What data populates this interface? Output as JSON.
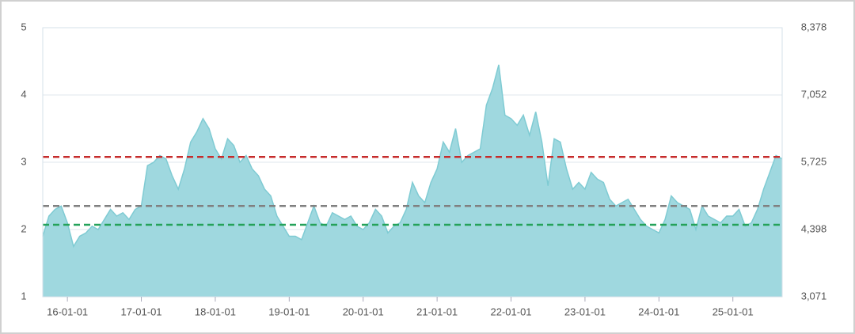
{
  "chart_data": {
    "type": "area",
    "color": "#9fd8df",
    "line_color": "#7fcbd3",
    "categories": [
      null,
      null,
      null,
      null,
      "16-01-01",
      null,
      null,
      null,
      null,
      null,
      null,
      null,
      null,
      null,
      null,
      null,
      "17-01-01",
      null,
      null,
      null,
      null,
      null,
      null,
      null,
      null,
      null,
      null,
      null,
      "18-01-01",
      null,
      null,
      null,
      null,
      null,
      null,
      null,
      null,
      null,
      null,
      null,
      "19-01-01",
      null,
      null,
      null,
      null,
      null,
      null,
      null,
      null,
      null,
      null,
      null,
      "20-01-01",
      null,
      null,
      null,
      null,
      null,
      null,
      null,
      null,
      null,
      null,
      null,
      "21-01-01",
      null,
      null,
      null,
      null,
      null,
      null,
      null,
      null,
      null,
      null,
      null,
      "22-01-01",
      null,
      null,
      null,
      null,
      null,
      null,
      null,
      null,
      null,
      null,
      null,
      "23-01-01",
      null,
      null,
      null,
      null,
      null,
      null,
      null,
      null,
      null,
      null,
      null,
      "24-01-01",
      null,
      null,
      null,
      null,
      null,
      null,
      null,
      null,
      null,
      null,
      null,
      "25-01-01",
      null,
      null,
      null,
      null,
      null,
      null,
      null,
      null
    ],
    "values": [
      1.9,
      2.2,
      2.3,
      2.35,
      2.1,
      1.75,
      1.9,
      1.95,
      2.05,
      2.0,
      2.15,
      2.3,
      2.2,
      2.25,
      2.15,
      2.3,
      2.35,
      2.95,
      3.0,
      3.1,
      3.05,
      2.8,
      2.6,
      2.9,
      3.3,
      3.45,
      3.65,
      3.5,
      3.2,
      3.05,
      3.35,
      3.25,
      3.0,
      3.1,
      2.9,
      2.8,
      2.6,
      2.5,
      2.2,
      2.05,
      1.9,
      1.9,
      1.85,
      2.1,
      2.35,
      2.1,
      2.05,
      2.25,
      2.2,
      2.15,
      2.2,
      2.05,
      2.0,
      2.1,
      2.3,
      2.2,
      1.95,
      2.05,
      2.1,
      2.3,
      2.7,
      2.5,
      2.4,
      2.7,
      2.9,
      3.3,
      3.15,
      3.5,
      3.0,
      3.1,
      3.15,
      3.2,
      3.85,
      4.1,
      4.45,
      3.7,
      3.65,
      3.55,
      3.7,
      3.4,
      3.75,
      3.3,
      2.65,
      3.35,
      3.3,
      2.9,
      2.6,
      2.7,
      2.6,
      2.85,
      2.75,
      2.7,
      2.45,
      2.35,
      2.4,
      2.45,
      2.3,
      2.15,
      2.05,
      2.0,
      1.95,
      2.15,
      2.5,
      2.4,
      2.35,
      2.3,
      2.0,
      2.35,
      2.2,
      2.15,
      2.1,
      2.2,
      2.2,
      2.3,
      2.05,
      2.1,
      2.3,
      2.6,
      2.85,
      3.1,
      3.05
    ],
    "ylim": [
      1,
      5
    ],
    "yticks": [
      1,
      2,
      3,
      4,
      5
    ],
    "y2lim": [
      3071,
      8378
    ],
    "y2ticks": [
      {
        "value": 3071,
        "label": "3,071"
      },
      {
        "value": 4398,
        "label": "4,398"
      },
      {
        "value": 5725,
        "label": "5,725"
      },
      {
        "value": 7052,
        "label": "7,052"
      },
      {
        "value": 8378,
        "label": "8,378"
      }
    ],
    "grid": true,
    "reference_lines": [
      {
        "value": 3.08,
        "color": "#c62b2b"
      },
      {
        "value": 2.35,
        "color": "#808080"
      },
      {
        "value": 2.07,
        "color": "#25a25a"
      }
    ]
  }
}
